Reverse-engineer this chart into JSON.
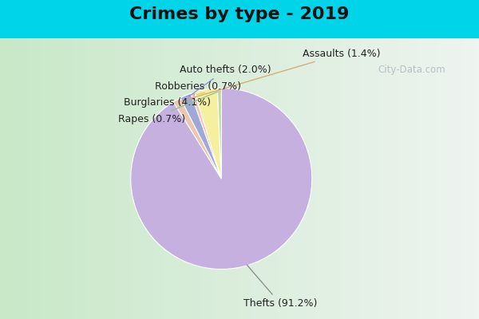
{
  "title": "Crimes by type - 2019",
  "slices": [
    {
      "label": "Thefts",
      "pct": 91.2,
      "color": "#c5b0e0"
    },
    {
      "label": "Assaults",
      "pct": 1.4,
      "color": "#e8c8b0"
    },
    {
      "label": "Auto thefts",
      "pct": 2.0,
      "color": "#a0a8d8"
    },
    {
      "label": "Robberies",
      "pct": 0.7,
      "color": "#f5c4c0"
    },
    {
      "label": "Burglaries",
      "pct": 4.1,
      "color": "#f5f0a0"
    },
    {
      "label": "Rapes",
      "pct": 0.7,
      "color": "#c0d8a0"
    }
  ],
  "background_top": "#00d4e8",
  "background_grad_left": "#c8e8c8",
  "background_grad_right": "#e8f4f0",
  "title_fontsize": 16,
  "label_fontsize": 9,
  "watermark": "City-Data.com"
}
